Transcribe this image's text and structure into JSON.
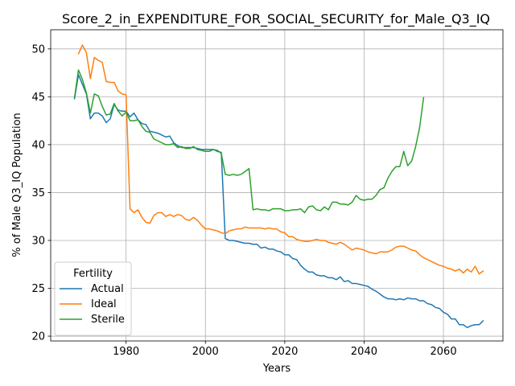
{
  "chart_data": {
    "type": "line",
    "title": "Score_2_in_EXPENDITURE_FOR_SOCIAL_SECURITY_for_Male_Q3_IQ",
    "xlabel": "Years",
    "ylabel": "% of Male Q3_IQ Population",
    "xlim": [
      1961,
      2075
    ],
    "ylim": [
      19.5,
      52
    ],
    "xticks": [
      1980,
      2000,
      2020,
      2040,
      2060
    ],
    "yticks": [
      20,
      25,
      30,
      35,
      40,
      45,
      50
    ],
    "grid": true,
    "legend": {
      "title": "Fertility",
      "placement": "lower-left"
    },
    "series": [
      {
        "name": "Actual",
        "color": "#1f77b4",
        "points": [
          [
            1967,
            44.8
          ],
          [
            1968,
            47.3
          ],
          [
            1969,
            46.3
          ],
          [
            1970,
            45.3
          ],
          [
            1971,
            42.7
          ],
          [
            1972,
            43.3
          ],
          [
            1973,
            43.3
          ],
          [
            1974,
            43.0
          ],
          [
            1975,
            42.3
          ],
          [
            1976,
            42.7
          ],
          [
            1977,
            44.2
          ],
          [
            1978,
            43.6
          ],
          [
            1979,
            43.5
          ],
          [
            1980,
            43.5
          ],
          [
            1981,
            42.9
          ],
          [
            1982,
            43.3
          ],
          [
            1983,
            42.6
          ],
          [
            1984,
            42.2
          ],
          [
            1985,
            42.1
          ],
          [
            1986,
            41.4
          ],
          [
            1987,
            41.3
          ],
          [
            1988,
            41.2
          ],
          [
            1989,
            41.0
          ],
          [
            1990,
            40.8
          ],
          [
            1991,
            40.9
          ],
          [
            1992,
            40.2
          ],
          [
            1993,
            39.9
          ],
          [
            1994,
            39.7
          ],
          [
            1995,
            39.7
          ],
          [
            1996,
            39.7
          ],
          [
            1997,
            39.7
          ],
          [
            1998,
            39.6
          ],
          [
            1999,
            39.5
          ],
          [
            2000,
            39.5
          ],
          [
            2001,
            39.5
          ],
          [
            2002,
            39.5
          ],
          [
            2003,
            39.3
          ],
          [
            2004,
            39.2
          ],
          [
            2005,
            30.2
          ],
          [
            2006,
            30.0
          ],
          [
            2007,
            30.0
          ],
          [
            2008,
            29.9
          ],
          [
            2009,
            29.8
          ],
          [
            2010,
            29.7
          ],
          [
            2011,
            29.7
          ],
          [
            2012,
            29.6
          ],
          [
            2013,
            29.6
          ],
          [
            2014,
            29.2
          ],
          [
            2015,
            29.3
          ],
          [
            2016,
            29.1
          ],
          [
            2017,
            29.1
          ],
          [
            2018,
            28.9
          ],
          [
            2019,
            28.8
          ],
          [
            2020,
            28.5
          ],
          [
            2021,
            28.5
          ],
          [
            2022,
            28.1
          ],
          [
            2023,
            28.0
          ],
          [
            2024,
            27.4
          ],
          [
            2025,
            27.0
          ],
          [
            2026,
            26.7
          ],
          [
            2027,
            26.7
          ],
          [
            2028,
            26.4
          ],
          [
            2029,
            26.3
          ],
          [
            2030,
            26.3
          ],
          [
            2031,
            26.1
          ],
          [
            2032,
            26.1
          ],
          [
            2033,
            25.9
          ],
          [
            2034,
            26.2
          ],
          [
            2035,
            25.7
          ],
          [
            2036,
            25.8
          ],
          [
            2037,
            25.5
          ],
          [
            2038,
            25.5
          ],
          [
            2039,
            25.4
          ],
          [
            2040,
            25.3
          ],
          [
            2041,
            25.2
          ],
          [
            2042,
            24.9
          ],
          [
            2043,
            24.7
          ],
          [
            2044,
            24.4
          ],
          [
            2045,
            24.1
          ],
          [
            2046,
            23.9
          ],
          [
            2047,
            23.9
          ],
          [
            2048,
            23.8
          ],
          [
            2049,
            23.9
          ],
          [
            2050,
            23.8
          ],
          [
            2051,
            24.0
          ],
          [
            2052,
            23.9
          ],
          [
            2053,
            23.9
          ],
          [
            2054,
            23.7
          ],
          [
            2055,
            23.7
          ],
          [
            2056,
            23.4
          ],
          [
            2057,
            23.3
          ],
          [
            2058,
            23.0
          ],
          [
            2059,
            22.9
          ],
          [
            2060,
            22.5
          ],
          [
            2061,
            22.3
          ],
          [
            2062,
            21.8
          ],
          [
            2063,
            21.8
          ],
          [
            2064,
            21.2
          ],
          [
            2065,
            21.2
          ],
          [
            2066,
            20.9
          ],
          [
            2067,
            21.1
          ],
          [
            2068,
            21.2
          ],
          [
            2069,
            21.2
          ],
          [
            2070,
            21.6
          ]
        ]
      },
      {
        "name": "Ideal",
        "color": "#ff7f0e",
        "points": [
          [
            1968,
            49.5
          ],
          [
            1969,
            50.4
          ],
          [
            1970,
            49.6
          ],
          [
            1971,
            46.9
          ],
          [
            1972,
            49.1
          ],
          [
            1973,
            48.8
          ],
          [
            1974,
            48.6
          ],
          [
            1975,
            46.6
          ],
          [
            1976,
            46.5
          ],
          [
            1977,
            46.5
          ],
          [
            1978,
            45.6
          ],
          [
            1979,
            45.3
          ],
          [
            1980,
            45.2
          ],
          [
            1981,
            33.3
          ],
          [
            1982,
            32.9
          ],
          [
            1983,
            33.2
          ],
          [
            1984,
            32.4
          ],
          [
            1985,
            31.9
          ],
          [
            1986,
            31.8
          ],
          [
            1987,
            32.6
          ],
          [
            1988,
            32.9
          ],
          [
            1989,
            32.9
          ],
          [
            1990,
            32.5
          ],
          [
            1991,
            32.7
          ],
          [
            1992,
            32.5
          ],
          [
            1993,
            32.7
          ],
          [
            1994,
            32.6
          ],
          [
            1995,
            32.2
          ],
          [
            1996,
            32.1
          ],
          [
            1997,
            32.4
          ],
          [
            1998,
            32.1
          ],
          [
            1999,
            31.6
          ],
          [
            2000,
            31.2
          ],
          [
            2001,
            31.2
          ],
          [
            2002,
            31.1
          ],
          [
            2003,
            31.0
          ],
          [
            2004,
            30.8
          ],
          [
            2005,
            30.7
          ],
          [
            2006,
            31.0
          ],
          [
            2007,
            31.1
          ],
          [
            2008,
            31.2
          ],
          [
            2009,
            31.2
          ],
          [
            2010,
            31.4
          ],
          [
            2011,
            31.3
          ],
          [
            2012,
            31.3
          ],
          [
            2013,
            31.3
          ],
          [
            2014,
            31.3
          ],
          [
            2015,
            31.2
          ],
          [
            2016,
            31.3
          ],
          [
            2017,
            31.2
          ],
          [
            2018,
            31.2
          ],
          [
            2019,
            30.9
          ],
          [
            2020,
            30.8
          ],
          [
            2021,
            30.4
          ],
          [
            2022,
            30.4
          ],
          [
            2023,
            30.1
          ],
          [
            2024,
            30.0
          ],
          [
            2025,
            29.9
          ],
          [
            2026,
            29.9
          ],
          [
            2027,
            30.0
          ],
          [
            2028,
            30.1
          ],
          [
            2029,
            30.0
          ],
          [
            2030,
            30.0
          ],
          [
            2031,
            29.8
          ],
          [
            2032,
            29.7
          ],
          [
            2033,
            29.6
          ],
          [
            2034,
            29.8
          ],
          [
            2035,
            29.6
          ],
          [
            2036,
            29.3
          ],
          [
            2037,
            29.0
          ],
          [
            2038,
            29.2
          ],
          [
            2039,
            29.1
          ],
          [
            2040,
            29.0
          ],
          [
            2041,
            28.8
          ],
          [
            2042,
            28.7
          ],
          [
            2043,
            28.6
          ],
          [
            2044,
            28.8
          ],
          [
            2045,
            28.8
          ],
          [
            2046,
            28.8
          ],
          [
            2047,
            29.0
          ],
          [
            2048,
            29.3
          ],
          [
            2049,
            29.4
          ],
          [
            2050,
            29.4
          ],
          [
            2051,
            29.2
          ],
          [
            2052,
            29.0
          ],
          [
            2053,
            28.9
          ],
          [
            2054,
            28.5
          ],
          [
            2055,
            28.2
          ],
          [
            2056,
            28.0
          ],
          [
            2057,
            27.8
          ],
          [
            2058,
            27.6
          ],
          [
            2059,
            27.4
          ],
          [
            2060,
            27.3
          ],
          [
            2061,
            27.1
          ],
          [
            2062,
            27.0
          ],
          [
            2063,
            26.8
          ],
          [
            2064,
            27.0
          ],
          [
            2065,
            26.6
          ],
          [
            2066,
            27.0
          ],
          [
            2067,
            26.7
          ],
          [
            2068,
            27.3
          ],
          [
            2069,
            26.5
          ],
          [
            2070,
            26.8
          ]
        ]
      },
      {
        "name": "Sterile",
        "color": "#2ca02c",
        "points": [
          [
            1967,
            44.9
          ],
          [
            1968,
            47.8
          ],
          [
            1969,
            46.8
          ],
          [
            1970,
            45.4
          ],
          [
            1971,
            43.3
          ],
          [
            1972,
            45.3
          ],
          [
            1973,
            45.1
          ],
          [
            1974,
            44.0
          ],
          [
            1975,
            43.1
          ],
          [
            1976,
            43.2
          ],
          [
            1977,
            44.3
          ],
          [
            1978,
            43.5
          ],
          [
            1979,
            43.0
          ],
          [
            1980,
            43.4
          ],
          [
            1981,
            42.5
          ],
          [
            1982,
            42.5
          ],
          [
            1983,
            42.6
          ],
          [
            1984,
            41.9
          ],
          [
            1985,
            41.4
          ],
          [
            1986,
            41.3
          ],
          [
            1987,
            40.6
          ],
          [
            1988,
            40.4
          ],
          [
            1989,
            40.2
          ],
          [
            1990,
            40.0
          ],
          [
            1991,
            40.0
          ],
          [
            1992,
            40.1
          ],
          [
            1993,
            39.7
          ],
          [
            1994,
            39.8
          ],
          [
            1995,
            39.6
          ],
          [
            1996,
            39.6
          ],
          [
            1997,
            39.8
          ],
          [
            1998,
            39.5
          ],
          [
            1999,
            39.4
          ],
          [
            2000,
            39.3
          ],
          [
            2001,
            39.3
          ],
          [
            2002,
            39.5
          ],
          [
            2003,
            39.4
          ],
          [
            2004,
            39.1
          ],
          [
            2005,
            36.9
          ],
          [
            2006,
            36.8
          ],
          [
            2007,
            36.9
          ],
          [
            2008,
            36.8
          ],
          [
            2009,
            36.9
          ],
          [
            2010,
            37.2
          ],
          [
            2011,
            37.5
          ],
          [
            2012,
            33.2
          ],
          [
            2013,
            33.3
          ],
          [
            2014,
            33.2
          ],
          [
            2015,
            33.2
          ],
          [
            2016,
            33.1
          ],
          [
            2017,
            33.3
          ],
          [
            2018,
            33.3
          ],
          [
            2019,
            33.3
          ],
          [
            2020,
            33.1
          ],
          [
            2021,
            33.1
          ],
          [
            2022,
            33.2
          ],
          [
            2023,
            33.2
          ],
          [
            2024,
            33.3
          ],
          [
            2025,
            32.9
          ],
          [
            2026,
            33.5
          ],
          [
            2027,
            33.6
          ],
          [
            2028,
            33.2
          ],
          [
            2029,
            33.1
          ],
          [
            2030,
            33.5
          ],
          [
            2031,
            33.2
          ],
          [
            2032,
            34.0
          ],
          [
            2033,
            34.0
          ],
          [
            2034,
            33.8
          ],
          [
            2035,
            33.8
          ],
          [
            2036,
            33.7
          ],
          [
            2037,
            34.0
          ],
          [
            2038,
            34.7
          ],
          [
            2039,
            34.3
          ],
          [
            2040,
            34.2
          ],
          [
            2041,
            34.3
          ],
          [
            2042,
            34.3
          ],
          [
            2043,
            34.7
          ],
          [
            2044,
            35.3
          ],
          [
            2045,
            35.5
          ],
          [
            2046,
            36.5
          ],
          [
            2047,
            37.2
          ],
          [
            2048,
            37.7
          ],
          [
            2049,
            37.7
          ],
          [
            2050,
            39.3
          ],
          [
            2051,
            37.8
          ],
          [
            2052,
            38.3
          ],
          [
            2053,
            39.8
          ],
          [
            2054,
            41.8
          ],
          [
            2055,
            44.9
          ]
        ]
      }
    ]
  }
}
